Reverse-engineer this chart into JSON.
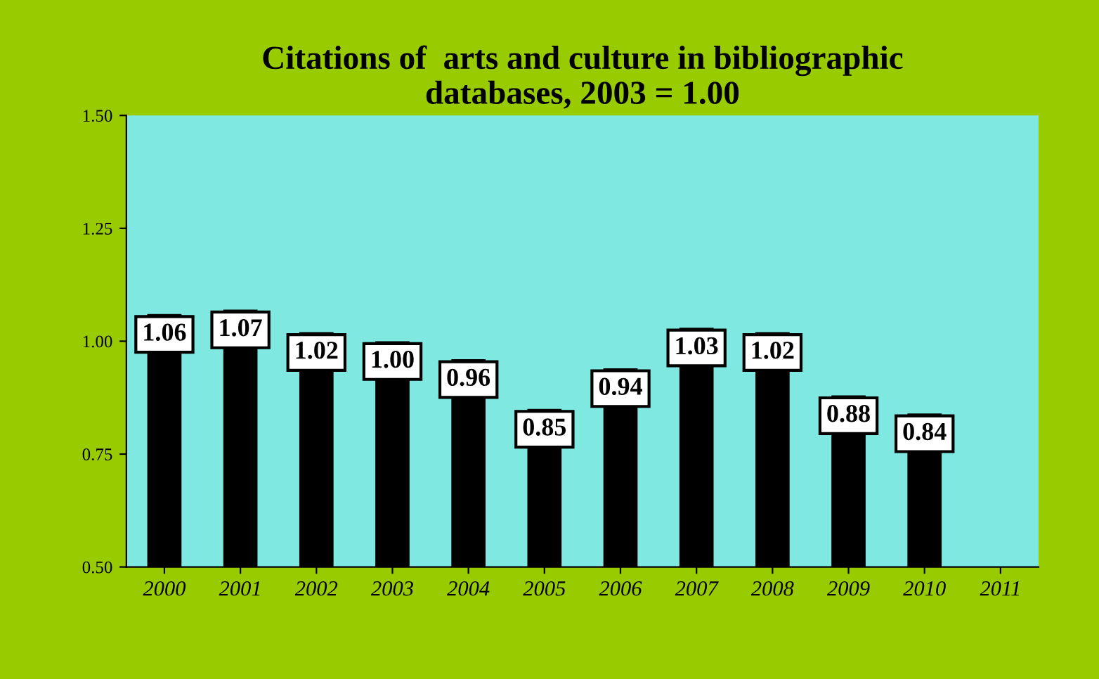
{
  "chart_data": {
    "type": "bar",
    "title": "Citations of  arts and culture in bibliographic\ndatabases, 2003 = 1.00",
    "categories": [
      "2000",
      "2001",
      "2002",
      "2003",
      "2004",
      "2005",
      "2006",
      "2007",
      "2008",
      "2009",
      "2010",
      "2011"
    ],
    "values": [
      1.06,
      1.07,
      1.02,
      1.0,
      0.96,
      0.85,
      0.94,
      1.03,
      1.02,
      0.88,
      0.84,
      null
    ],
    "color": "#000000",
    "value_labels": [
      "1.06",
      "1.07",
      "1.02",
      "1.00",
      "0.96",
      "0.85",
      "0.94",
      "1.03",
      "1.02",
      "0.88",
      "0.84",
      null
    ],
    "ylim": [
      0.5,
      1.5
    ],
    "yticks": [
      {
        "value": 0.5,
        "label": "0.50"
      },
      {
        "value": 0.75,
        "label": "0.75"
      },
      {
        "value": 1.0,
        "label": "1.00"
      },
      {
        "value": 1.25,
        "label": "1.25"
      },
      {
        "value": 1.5,
        "label": "1.50"
      }
    ],
    "grid": false
  }
}
